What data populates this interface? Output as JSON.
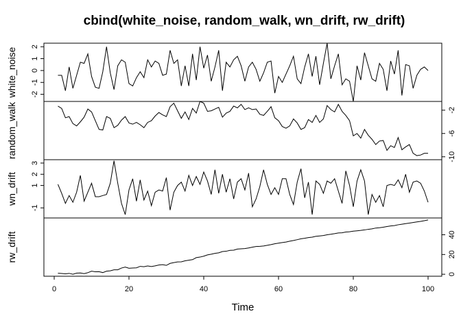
{
  "chart_data": {
    "type": "line",
    "title": "cbind(white_noise, random_walk, wn_drift, rw_drift)",
    "xlabel": "Time",
    "xlim": [
      1,
      100
    ],
    "xticks": [
      "0",
      "20",
      "40",
      "60",
      "80",
      "100"
    ],
    "panels": [
      {
        "name": "white_noise",
        "ylim": [
          -2.6,
          2.3
        ],
        "yticks": [
          "-2",
          "-1",
          "0",
          "1",
          "2"
        ],
        "y": [
          -0.4,
          -0.4,
          -1.7,
          0.3,
          -1.5,
          -0.4,
          0.7,
          0.6,
          1.4,
          -0.5,
          -1.4,
          -1.5,
          -0.1,
          2.0,
          -0.2,
          -1.6,
          0.4,
          0.9,
          0.7,
          -1.1,
          -1.3,
          -0.6,
          -0.1,
          -0.6,
          0.9,
          0.3,
          0.8,
          0.6,
          -0.4,
          -0.3,
          1.7,
          0.6,
          0.9,
          -1.3,
          0.4,
          -1.3,
          1.4,
          -0.8,
          2.0,
          0.2,
          1.3,
          -0.9,
          0.3,
          1.7,
          -1.7,
          0.7,
          0.3,
          0.9,
          1.2,
          0.4,
          -0.9,
          0.3,
          0.7,
          0.1,
          -0.9,
          -0.2,
          0.7,
          0.8,
          -1.9,
          -0.5,
          -1.0,
          -0.3,
          0.4,
          1.2,
          -0.7,
          -1.1,
          0.3,
          1.4,
          -0.5,
          1.2,
          -1.2,
          0.6,
          2.3,
          -0.7,
          0.4,
          1.4,
          -1.2,
          -0.7,
          -0.9,
          -2.6,
          0.4,
          -0.8,
          1.5,
          0.4,
          -0.7,
          -0.9,
          0.6,
          0.1,
          -1.7,
          0.8,
          -0.3,
          1.7,
          -2.1,
          0.5,
          0.4,
          -1.5,
          -0.4,
          0.1,
          0.3,
          0.0
        ]
      },
      {
        "name": "random_walk",
        "ylim": [
          -10.5,
          -0.5
        ],
        "yticks": [
          "-10",
          "-6",
          "-2"
        ],
        "y": [
          -1.3,
          -1.7,
          -3.3,
          -3.1,
          -4.3,
          -4.7,
          -4.0,
          -3.2,
          -1.8,
          -2.3,
          -3.8,
          -5.3,
          -5.4,
          -3.1,
          -3.4,
          -5.0,
          -4.6,
          -3.7,
          -3.1,
          -4.2,
          -4.4,
          -4.1,
          -4.5,
          -5.0,
          -4.1,
          -3.8,
          -3.0,
          -2.4,
          -2.8,
          -3.1,
          -1.4,
          -0.8,
          -2.1,
          -3.4,
          -2.3,
          -3.6,
          -1.7,
          -2.5,
          -0.5,
          -0.8,
          -2.2,
          -2.1,
          -1.8,
          -1.5,
          -3.2,
          -2.5,
          -2.2,
          -1.3,
          -1.6,
          -1.0,
          -1.9,
          -1.6,
          -1.9,
          -1.8,
          -2.7,
          -2.9,
          -2.2,
          -1.4,
          -3.3,
          -3.8,
          -4.8,
          -5.1,
          -4.7,
          -3.5,
          -4.2,
          -5.3,
          -5.0,
          -3.6,
          -4.1,
          -2.9,
          -4.1,
          -3.5,
          -1.2,
          -1.9,
          -2.3,
          -1.0,
          -2.2,
          -2.9,
          -3.8,
          -6.4,
          -6.0,
          -6.8,
          -5.3,
          -6.3,
          -7.0,
          -7.9,
          -7.3,
          -7.2,
          -8.9,
          -8.1,
          -8.4,
          -6.7,
          -8.8,
          -8.3,
          -7.9,
          -9.4,
          -9.8,
          -9.7,
          -9.4,
          -9.4
        ]
      },
      {
        "name": "wn_drift",
        "ylim": [
          -1.9,
          3.3
        ],
        "yticks": [
          "-1",
          "1",
          "2",
          "3"
        ],
        "y": [
          1.1,
          0.3,
          -0.6,
          0.1,
          -0.5,
          0.4,
          1.9,
          -0.4,
          0.4,
          1.2,
          0.0,
          0.0,
          0.1,
          0.2,
          1.2,
          3.2,
          1.2,
          -0.6,
          -1.6,
          0.6,
          1.6,
          -0.4,
          1.5,
          -0.3,
          0.5,
          -0.8,
          0.4,
          0.6,
          0.5,
          1.7,
          -1.2,
          0.4,
          1.0,
          1.3,
          0.5,
          1.9,
          1.0,
          1.8,
          1.1,
          2.2,
          1.4,
          0.2,
          2.4,
          0.3,
          2.0,
          0.4,
          1.6,
          -0.2,
          1.3,
          1.6,
          0.6,
          2.1,
          -0.9,
          -0.2,
          0.9,
          2.4,
          1.1,
          0.2,
          0.8,
          0.2,
          1.6,
          1.6,
          0.2,
          -0.7,
          1.3,
          2.5,
          -0.1,
          1.3,
          -1.6,
          1.4,
          1.1,
          0.3,
          1.4,
          1.2,
          1.6,
          0.5,
          -0.6,
          2.3,
          1.0,
          -0.9,
          1.4,
          2.4,
          1.4,
          -1.6,
          0.2,
          -0.5,
          0.1,
          -0.9,
          1.0,
          1.1,
          1.0,
          1.5,
          0.8,
          2.0,
          0.4,
          1.3,
          1.4,
          1.2,
          0.5,
          -0.5
        ]
      },
      {
        "name": "rw_drift",
        "ylim": [
          -2,
          57
        ],
        "yticks": [
          "0",
          "20",
          "40"
        ],
        "y": [
          1.0,
          0.8,
          0.4,
          0.9,
          0.0,
          1.1,
          1.3,
          0.6,
          1.6,
          3.1,
          2.5,
          2.6,
          1.7,
          3.1,
          3.5,
          4.5,
          4.5,
          6.3,
          7.3,
          6.1,
          6.3,
          6.5,
          8.0,
          7.6,
          8.4,
          7.8,
          8.5,
          9.4,
          9.7,
          9.0,
          11.0,
          11.8,
          12.5,
          12.6,
          13.6,
          14.2,
          14.8,
          16.8,
          17.4,
          18.3,
          19.6,
          20.3,
          21.2,
          21.7,
          23.0,
          23.3,
          24.2,
          24.4,
          25.5,
          25.8,
          26.0,
          26.6,
          27.4,
          28.1,
          28.3,
          28.6,
          29.3,
          30.0,
          30.9,
          31.5,
          32.1,
          32.6,
          33.5,
          34.2,
          35.0,
          35.9,
          36.4,
          37.1,
          37.6,
          38.4,
          38.8,
          39.2,
          40.0,
          40.5,
          41.1,
          41.8,
          42.0,
          42.8,
          43.0,
          43.6,
          44.0,
          44.4,
          44.9,
          45.5,
          46.0,
          46.8,
          47.1,
          47.6,
          48.3,
          48.9,
          49.3,
          50.1,
          50.7,
          51.3,
          51.8,
          52.4,
          53.0,
          53.5,
          54.2,
          55.0
        ]
      }
    ]
  }
}
